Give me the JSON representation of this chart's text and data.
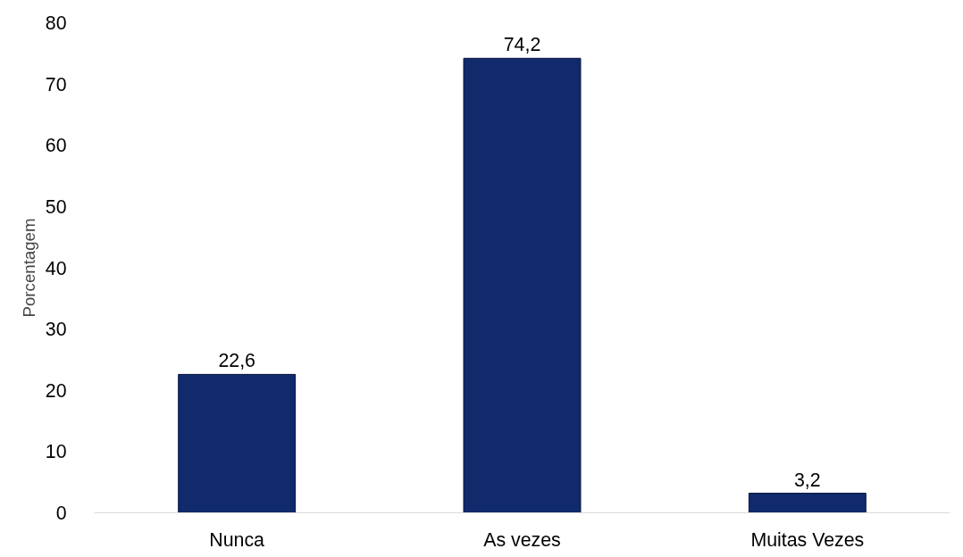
{
  "chart_data": {
    "type": "bar",
    "ylabel": "Porcentagem",
    "categories": [
      "Nunca",
      "As vezes",
      "Muitas Vezes"
    ],
    "values": [
      22.6,
      74.2,
      3.2
    ],
    "value_labels": [
      "22,6",
      "74,2",
      "3,2"
    ],
    "color": "#112a6b",
    "ylim": [
      0,
      80
    ],
    "yticks": [
      0,
      10,
      20,
      30,
      40,
      50,
      60,
      70,
      80
    ],
    "grid": false
  }
}
